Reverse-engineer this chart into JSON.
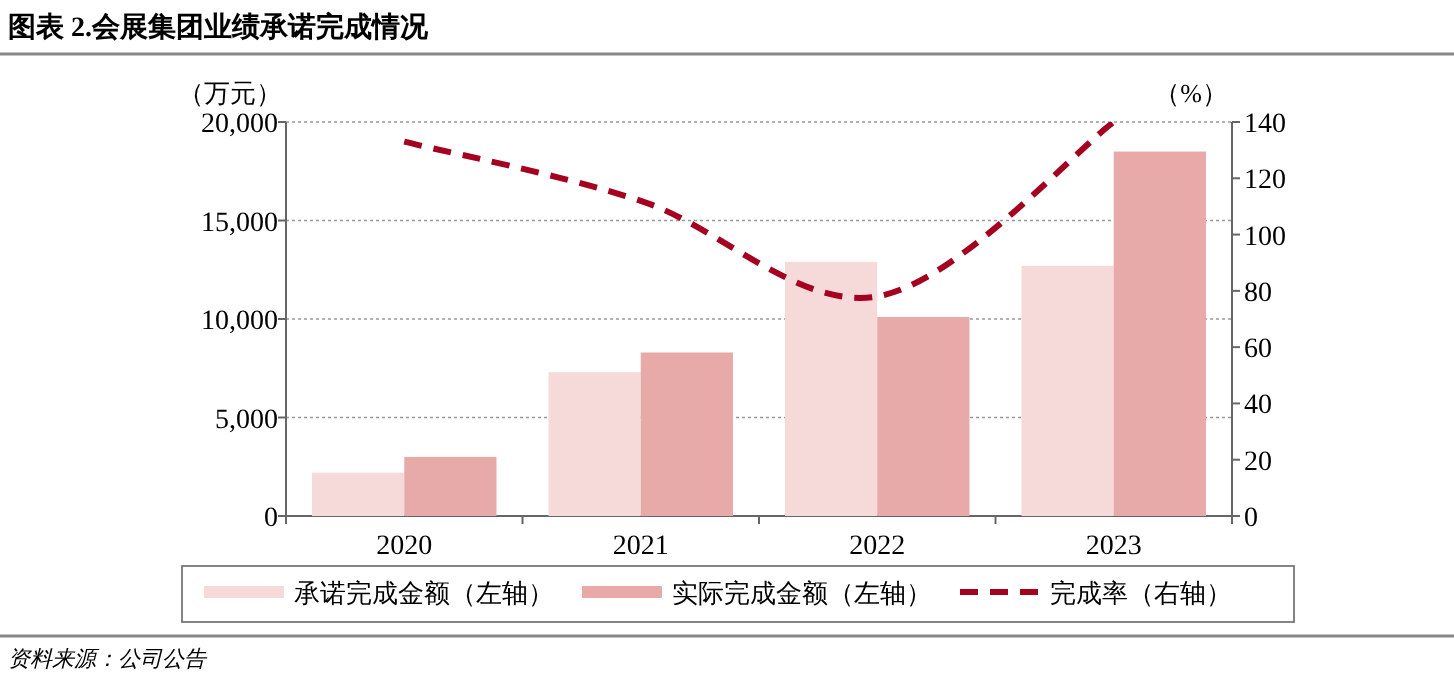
{
  "chart_data": {
    "type": "bar",
    "title": "图表 2.会展集团业绩承诺完成情况",
    "ylabel": "（万元）",
    "y2label": "（%）",
    "annotations": [
      "资料来源：公司公告"
    ],
    "categories": [
      "2020",
      "2021",
      "2022",
      "2023"
    ],
    "series": [
      {
        "name": "承诺完成金额（左轴）",
        "color": "#f6d9d9",
        "values": [
          2200,
          7300,
          12900,
          12700
        ]
      },
      {
        "name": "实际完成金额（左轴）",
        "color": "#e8a9a9",
        "values": [
          3000,
          8300,
          10100,
          18500
        ]
      },
      {
        "name": "完成率（右轴）",
        "type": "line",
        "axis": "y2",
        "color": "#a5001f",
        "line_style": "dashed",
        "marker": "none",
        "values": [
          133,
          112,
          78,
          140
        ]
      }
    ],
    "ylim": [
      0,
      20000
    ],
    "yticks": [
      0,
      {
        "value": 5000,
        "label": "5,000"
      },
      {
        "value": 10000,
        "label": "10,000"
      },
      {
        "value": 15000,
        "label": "15,000"
      },
      {
        "value": 20000,
        "label": "20,000"
      }
    ],
    "y2lim": [
      0,
      140
    ],
    "y2ticks": [
      0,
      20,
      40,
      60,
      80,
      100,
      120,
      140
    ],
    "grid": "y",
    "legend": "bottom"
  }
}
